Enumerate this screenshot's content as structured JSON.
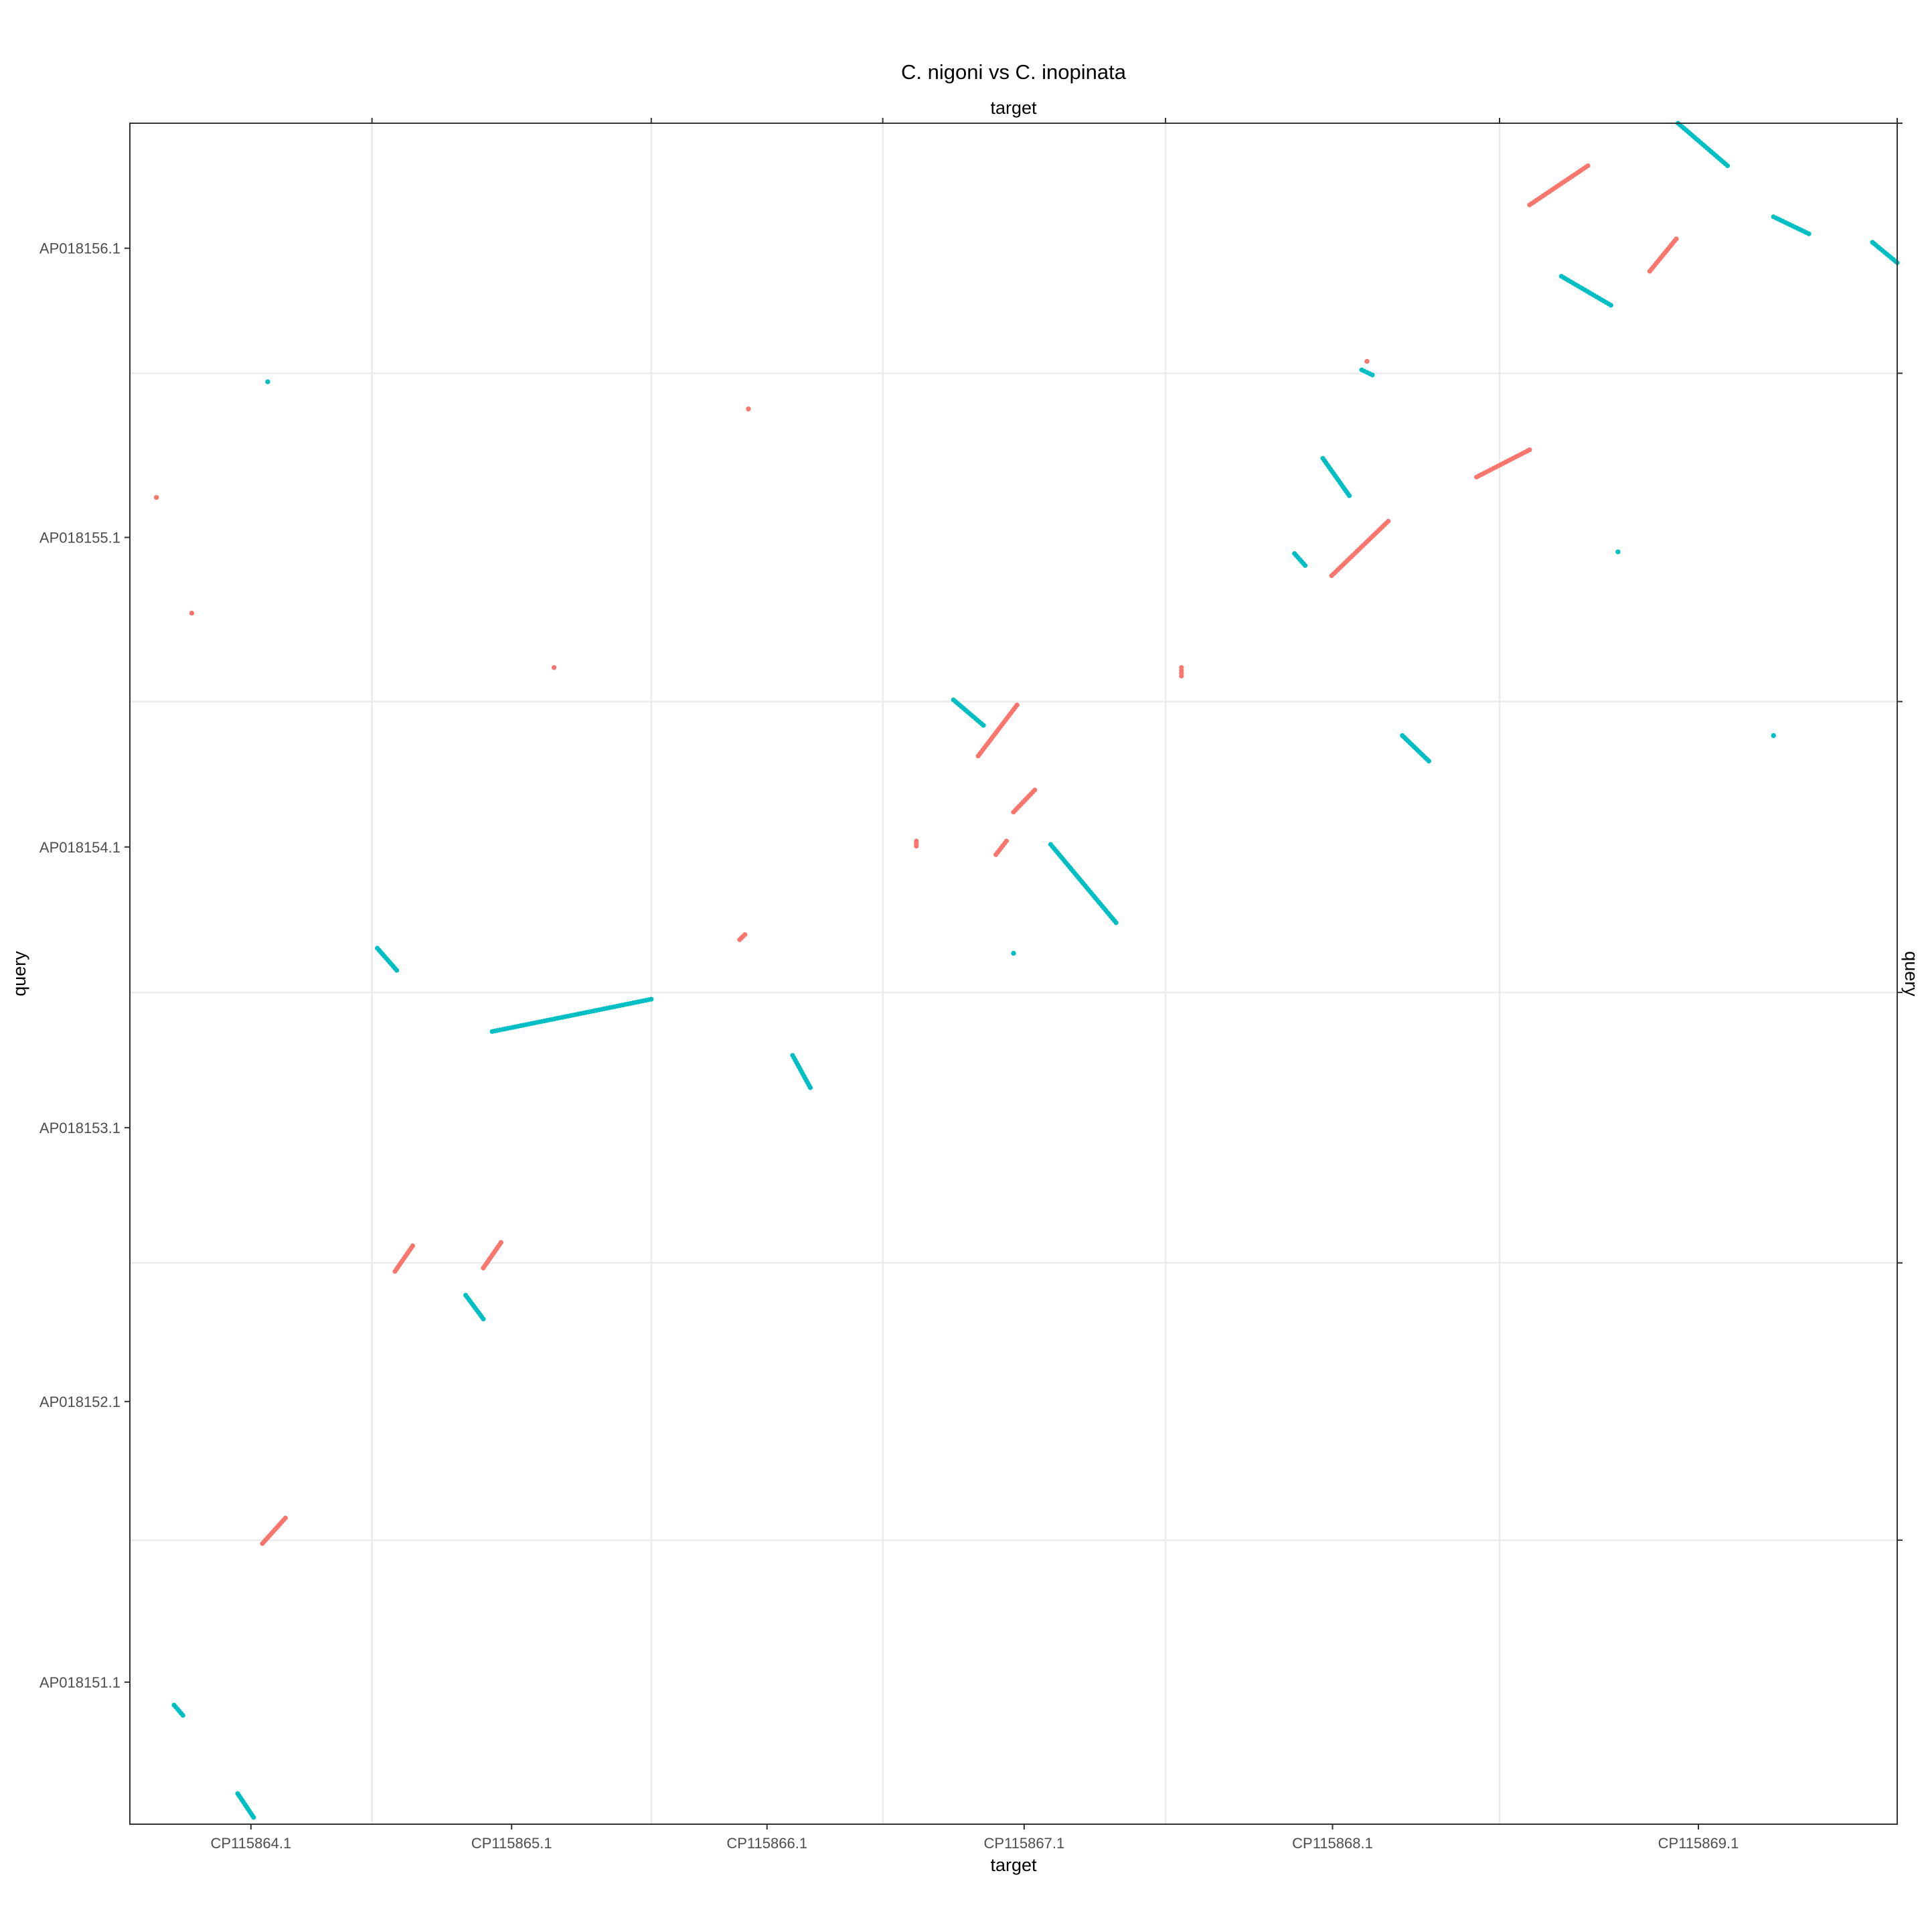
{
  "chart_data": {
    "type": "scatter",
    "title": "C. nigoni vs C. inopinata",
    "xlabel": "target",
    "ylabel": "query",
    "top_axis_label": "target",
    "right_axis_label": "query",
    "grid": true,
    "legend": "none",
    "colors": {
      "forward": "#F8766D",
      "reverse": "#00BFC4",
      "grid": "#EBEBEB",
      "frame": "#333333",
      "tick_text": "#4D4D4D",
      "title_text": "#000000"
    },
    "x_range": [
      0,
      1
    ],
    "y_range": [
      0,
      1
    ],
    "x_chromosomes": [
      {
        "name": "CP115864.1",
        "start": 0.0,
        "end": 0.137
      },
      {
        "name": "CP115865.1",
        "start": 0.137,
        "end": 0.295
      },
      {
        "name": "CP115866.1",
        "start": 0.295,
        "end": 0.426
      },
      {
        "name": "CP115867.1",
        "start": 0.426,
        "end": 0.586
      },
      {
        "name": "CP115868.1",
        "start": 0.586,
        "end": 0.775
      },
      {
        "name": "CP115869.1",
        "start": 0.775,
        "end": 1.0
      }
    ],
    "y_chromosomes": [
      {
        "name": "AP018151.1",
        "start": 0.0,
        "end": 0.167
      },
      {
        "name": "AP018152.1",
        "start": 0.167,
        "end": 0.33
      },
      {
        "name": "AP018153.1",
        "start": 0.33,
        "end": 0.489
      },
      {
        "name": "AP018154.1",
        "start": 0.489,
        "end": 0.66
      },
      {
        "name": "AP018155.1",
        "start": 0.66,
        "end": 0.853
      },
      {
        "name": "AP018156.1",
        "start": 0.853,
        "end": 1.0
      }
    ],
    "series": [
      {
        "orientation": "forward",
        "color": "#F8766D",
        "segments": [
          [
            0.075,
            0.165,
            0.088,
            0.18
          ],
          [
            0.15,
            0.325,
            0.16,
            0.34
          ],
          [
            0.2,
            0.327,
            0.21,
            0.342
          ],
          [
            0.595,
            0.675,
            0.595,
            0.68
          ],
          [
            0.68,
            0.734,
            0.712,
            0.766
          ],
          [
            0.762,
            0.792,
            0.792,
            0.808
          ],
          [
            0.792,
            0.952,
            0.825,
            0.975
          ],
          [
            0.86,
            0.913,
            0.875,
            0.932
          ],
          [
            0.48,
            0.628,
            0.502,
            0.658
          ],
          [
            0.5,
            0.595,
            0.512,
            0.608
          ],
          [
            0.49,
            0.57,
            0.496,
            0.578
          ],
          [
            0.445,
            0.575,
            0.445,
            0.578
          ],
          [
            0.345,
            0.52,
            0.348,
            0.523
          ],
          [
            0.015,
            0.78,
            0.015,
            0.78
          ],
          [
            0.035,
            0.712,
            0.035,
            0.712
          ],
          [
            0.24,
            0.68,
            0.24,
            0.68
          ],
          [
            0.35,
            0.832,
            0.35,
            0.832
          ],
          [
            0.7,
            0.86,
            0.7,
            0.86
          ]
        ]
      },
      {
        "orientation": "reverse",
        "color": "#00BFC4",
        "segments": [
          [
            0.876,
            1.0,
            0.904,
            0.975
          ],
          [
            0.93,
            0.945,
            0.95,
            0.935
          ],
          [
            0.986,
            0.93,
            1.0,
            0.918
          ],
          [
            0.81,
            0.91,
            0.838,
            0.893
          ],
          [
            0.675,
            0.803,
            0.69,
            0.781
          ],
          [
            0.659,
            0.747,
            0.665,
            0.74
          ],
          [
            0.697,
            0.855,
            0.703,
            0.852
          ],
          [
            0.466,
            0.661,
            0.483,
            0.646
          ],
          [
            0.521,
            0.576,
            0.558,
            0.53
          ],
          [
            0.205,
            0.466,
            0.295,
            0.485
          ],
          [
            0.19,
            0.311,
            0.2,
            0.297
          ],
          [
            0.375,
            0.452,
            0.385,
            0.433
          ],
          [
            0.14,
            0.515,
            0.151,
            0.502
          ],
          [
            0.061,
            0.018,
            0.07,
            0.004
          ],
          [
            0.025,
            0.07,
            0.03,
            0.064
          ],
          [
            0.72,
            0.64,
            0.735,
            0.625
          ],
          [
            0.078,
            0.848,
            0.078,
            0.848
          ],
          [
            0.5,
            0.512,
            0.5,
            0.512
          ],
          [
            0.842,
            0.748,
            0.842,
            0.748
          ],
          [
            0.93,
            0.64,
            0.93,
            0.64
          ]
        ]
      }
    ]
  }
}
